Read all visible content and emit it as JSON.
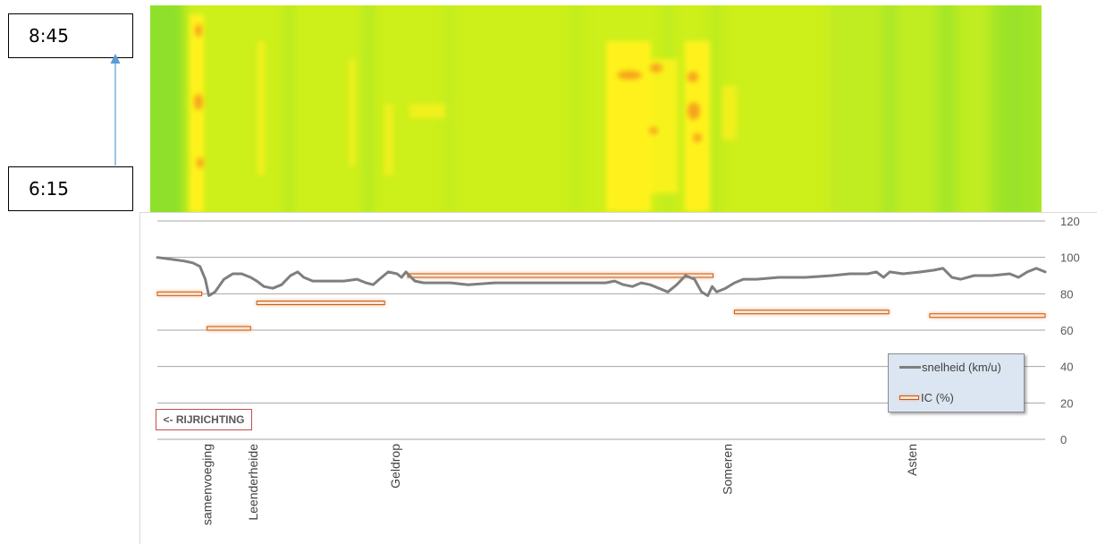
{
  "time_labels": {
    "end": "8:45",
    "start": "6:15"
  },
  "direction_label": "<- RIJRICHTING",
  "colors": {
    "heatmap_green": "#8ee02a",
    "heatmap_yellowgreen": "#cdef1a",
    "heatmap_yellow": "#fff21c",
    "heatmap_orange": "#f7a21b",
    "speed_line": "#7f7f7f",
    "ic_bar_fill": "#fbe4d5",
    "ic_bar_border": "#c55a11",
    "legend_bg": "#dce6f2",
    "arrow": "#5b9bd5"
  },
  "chart_data": {
    "type": "line",
    "title": "",
    "xlabel": "",
    "ylabel": "",
    "ylim": [
      0,
      120
    ],
    "yticks": [
      "0",
      "20",
      "40",
      "60",
      "80",
      "100",
      "120"
    ],
    "y_axis_side": "right",
    "grid": true,
    "x_domain": [
      0,
      100
    ],
    "locations": [
      {
        "name": "samenvoeging",
        "x": 5.6
      },
      {
        "name": "Leenderheide",
        "x": 10.8
      },
      {
        "name": "Geldrop",
        "x": 26.8
      },
      {
        "name": "Someren",
        "x": 64.2
      },
      {
        "name": "Asten",
        "x": 85.0
      }
    ],
    "series": [
      {
        "name": "snelheid (km/u)",
        "kind": "line",
        "x": [
          0,
          1.5,
          3,
          4,
          4.8,
          5.4,
          5.8,
          6.5,
          7.5,
          8.5,
          9.5,
          10.5,
          11.2,
          12,
          13,
          14,
          15,
          15.8,
          16.5,
          17.5,
          19,
          21,
          22.5,
          23.5,
          24.3,
          25,
          26,
          27,
          27.5,
          28,
          29,
          30,
          31.5,
          33,
          35,
          38,
          42,
          46,
          49,
          50.5,
          51.5,
          52.5,
          53.5,
          54.5,
          55.5,
          56.5,
          57.5,
          58.5,
          59.5,
          60.5,
          61.3,
          62,
          62.5,
          63,
          64,
          65,
          66,
          67.5,
          70,
          73,
          76,
          78,
          80,
          81,
          81.8,
          82.5,
          84,
          86,
          87.5,
          88.5,
          89.5,
          90.5,
          92,
          94,
          96,
          97,
          98,
          99,
          100
        ],
        "y": [
          100,
          99,
          98,
          97,
          95,
          88,
          79,
          81,
          88,
          91,
          91,
          89,
          87,
          84,
          83,
          85,
          90,
          92,
          89,
          87,
          87,
          87,
          88,
          86,
          85,
          88,
          92,
          91,
          89,
          92,
          87,
          86,
          86,
          86,
          85,
          86,
          86,
          86,
          86,
          86,
          87,
          85,
          84,
          86,
          85,
          83,
          81,
          85,
          90,
          88,
          81,
          79,
          84,
          81,
          83,
          86,
          88,
          88,
          89,
          89,
          90,
          91,
          91,
          92,
          89,
          92,
          91,
          92,
          93,
          94,
          89,
          88,
          90,
          90,
          91,
          89,
          92,
          94,
          92
        ]
      },
      {
        "name": "IC (%)",
        "kind": "segments",
        "segments": [
          {
            "x0": 0,
            "x1": 5,
            "value": 80
          },
          {
            "x0": 5.6,
            "x1": 10.5,
            "value": 61
          },
          {
            "x0": 11.2,
            "x1": 25.6,
            "value": 75
          },
          {
            "x0": 28.2,
            "x1": 62.6,
            "value": 90
          },
          {
            "x0": 65,
            "x1": 82.4,
            "value": 70
          },
          {
            "x0": 87,
            "x1": 100,
            "value": 68
          }
        ]
      }
    ],
    "legend": {
      "position": "bottom-right",
      "entries": [
        "snelheid (km/u)",
        "IC (%)"
      ]
    }
  }
}
